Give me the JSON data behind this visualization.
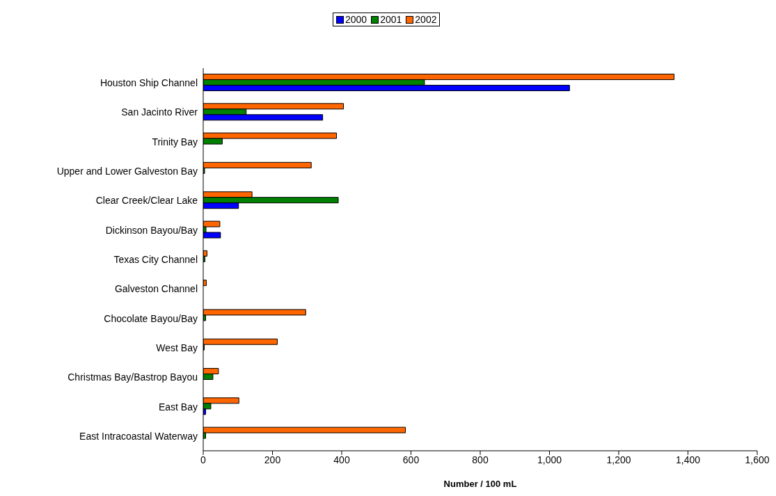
{
  "chart_data": {
    "type": "bar",
    "orientation": "horizontal",
    "xlabel": "Number / 100 mL",
    "categories": [
      "Houston Ship Channel",
      "San Jacinto River",
      "Trinity Bay",
      "Upper and Lower Galveston Bay",
      "Clear Creek/Clear Lake",
      "Dickinson Bayou/Bay",
      "Texas City Channel",
      "Galveston Channel",
      "Chocolate Bayou/Bay",
      "West Bay",
      "Christmas Bay/Bastrop Bayou",
      "East Bay",
      "East Intracoastal Waterway"
    ],
    "series": [
      {
        "name": "2000",
        "color": "#0000ff",
        "values": [
          1058,
          345,
          0,
          null,
          102,
          50,
          0,
          0,
          0,
          0,
          0,
          7,
          0
        ]
      },
      {
        "name": "2001",
        "color": "#008000",
        "values": [
          639,
          124,
          55,
          4,
          390,
          8,
          5,
          0,
          7,
          3,
          28,
          22,
          7
        ]
      },
      {
        "name": "2002",
        "color": "#ff6600",
        "values": [
          1360,
          405,
          385,
          312,
          141,
          48,
          11,
          9,
          296,
          214,
          44,
          103,
          584
        ]
      }
    ],
    "xlim": [
      0,
      1600
    ],
    "xticks": [
      0,
      {
        "value": 200,
        "label": "200"
      },
      {
        "value": 400,
        "label": "400"
      },
      {
        "value": 600,
        "label": "600"
      },
      {
        "value": 800,
        "label": "800"
      },
      {
        "value": 1000,
        "label": "1,000"
      },
      {
        "value": 1200,
        "label": "1,200"
      },
      {
        "value": 1400,
        "label": "1,400"
      },
      {
        "value": 1600,
        "label": "1,600"
      }
    ],
    "legend": "top",
    "grid": false
  }
}
